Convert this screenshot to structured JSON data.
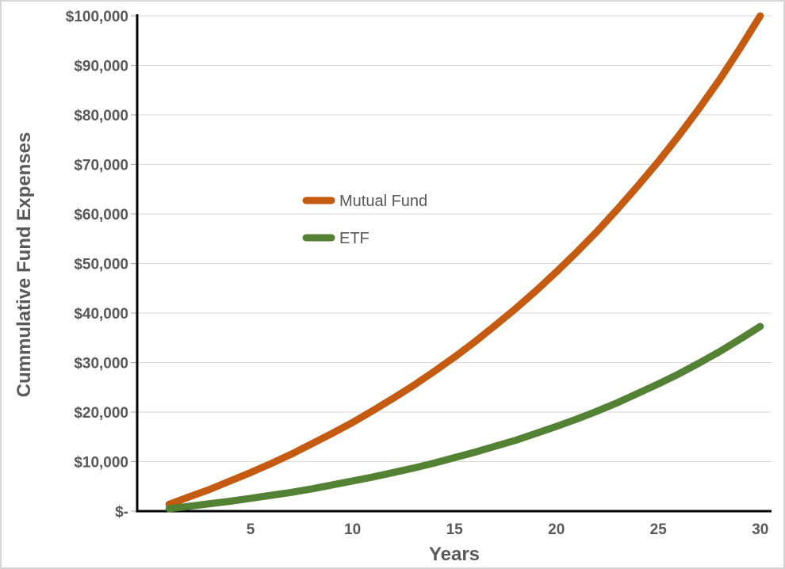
{
  "chart_data": {
    "type": "line",
    "xlabel": "Years",
    "ylabel": "Cummulative Fund Expenses",
    "ylim": [
      0,
      100000
    ],
    "xlim": [
      0,
      30.5
    ],
    "grid": "horizontal",
    "legend_position": "inside-center-left",
    "x": [
      1,
      2,
      3,
      4,
      5,
      6,
      7,
      8,
      9,
      10,
      11,
      12,
      13,
      14,
      15,
      16,
      17,
      18,
      19,
      20,
      21,
      22,
      23,
      24,
      25,
      26,
      27,
      28,
      29,
      30
    ],
    "series": [
      {
        "name": "Mutual Fund",
        "color": "#C55A11",
        "values": [
          1400,
          2900,
          4400,
          6100,
          7800,
          9600,
          11500,
          13600,
          15700,
          17900,
          20300,
          22800,
          25400,
          28200,
          31100,
          34200,
          37500,
          40900,
          44500,
          48300,
          52300,
          56500,
          61000,
          65700,
          70600,
          75800,
          81300,
          87100,
          93400,
          100000
        ]
      },
      {
        "name": "ETF",
        "color": "#548235",
        "values": [
          500,
          1000,
          1500,
          2000,
          2600,
          3200,
          3800,
          4500,
          5300,
          6100,
          6900,
          7800,
          8700,
          9700,
          10800,
          11900,
          13100,
          14300,
          15700,
          17100,
          18600,
          20200,
          21900,
          23800,
          25700,
          27700,
          29900,
          32200,
          34700,
          37300
        ]
      }
    ],
    "y_ticks": [
      {
        "value": 0,
        "label": "$-"
      },
      {
        "value": 10000,
        "label": "$10,000"
      },
      {
        "value": 20000,
        "label": "$20,000"
      },
      {
        "value": 30000,
        "label": "$30,000"
      },
      {
        "value": 40000,
        "label": "$40,000"
      },
      {
        "value": 50000,
        "label": "$50,000"
      },
      {
        "value": 60000,
        "label": "$60,000"
      },
      {
        "value": 70000,
        "label": "$70,000"
      },
      {
        "value": 80000,
        "label": "$80,000"
      },
      {
        "value": 90000,
        "label": "$90,000"
      },
      {
        "value": 100000,
        "label": "$100,000"
      }
    ],
    "x_ticks": [
      5,
      10,
      15,
      20,
      25,
      30
    ],
    "colors": {
      "grid": "#D9D9D9",
      "axis": "#000000",
      "tick": "#A6A6A6",
      "text": "#595959",
      "background": "#FFFFFF"
    }
  }
}
